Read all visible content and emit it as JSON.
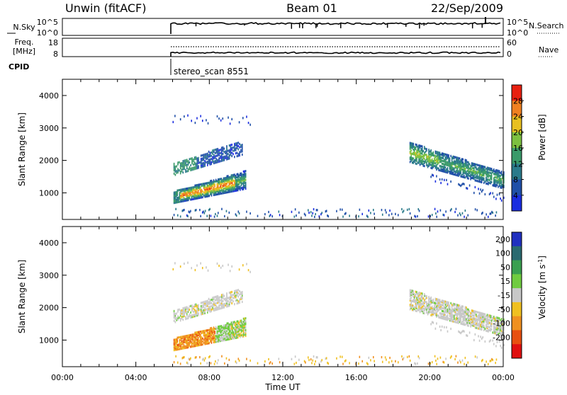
{
  "header": {
    "station": "Unwin (fitACF)",
    "beam": "Beam 01",
    "date": "22/Sep/2009"
  },
  "nsky_panel": {
    "left_label": "N.Sky",
    "left_ticks": [
      "10^5",
      "10^0"
    ],
    "right_ticks": [
      "10^5",
      "10^0"
    ],
    "right_label": "N.Search"
  },
  "freq_panel": {
    "left_label_1": "Freq.",
    "left_label_2": "[MHz]",
    "left_ticks": [
      "18",
      "8"
    ],
    "right_ticks": [
      "60",
      "0"
    ],
    "right_label": "Nave"
  },
  "cpid": {
    "label": "CPID",
    "program": "stereo_scan 8551"
  },
  "chart_data": [
    {
      "type": "heatmap",
      "name": "power",
      "ylabel": "Slant Range [km]",
      "xlabel": "Time UT",
      "x_ticks": [
        "00:00",
        "04:00",
        "08:00",
        "12:00",
        "16:00",
        "20:00",
        "00:00"
      ],
      "xlim_hours": [
        0,
        24
      ],
      "ylim": [
        180,
        4500
      ],
      "y_ticks": [
        1000,
        2000,
        3000,
        4000
      ],
      "colorbar": {
        "label": "Power [dB]",
        "range": [
          0,
          32
        ],
        "ticks": [
          4,
          8,
          12,
          16,
          20,
          24,
          28
        ],
        "colors": [
          "#1a2de0",
          "#1f4fa8",
          "#2a7a8a",
          "#3a9a6a",
          "#7cc040",
          "#e8c020",
          "#f08020",
          "#e82010"
        ]
      },
      "regions": [
        {
          "t_start": 6.05,
          "t_end": 10.0,
          "r_start": 650,
          "r_end": 1650,
          "peak_db": 30,
          "desc": "main band rising"
        },
        {
          "t_start": 6.05,
          "t_end": 9.8,
          "r_start": 1500,
          "r_end": 2650,
          "peak_db": 16,
          "desc": "upper band"
        },
        {
          "t_start": 6.0,
          "t_end": 10.2,
          "r_start": 3050,
          "r_end": 3350,
          "peak_db": 4,
          "desc": "sparse top"
        },
        {
          "t_start": 18.9,
          "t_end": 24.0,
          "r_start": 1000,
          "r_end": 2800,
          "peak_db": 22,
          "desc": "evening band"
        }
      ]
    },
    {
      "type": "heatmap",
      "name": "velocity",
      "ylabel": "Slant Range [km]",
      "xlabel": "Time UT",
      "x_ticks": [
        "00:00",
        "04:00",
        "08:00",
        "12:00",
        "16:00",
        "20:00",
        "00:00"
      ],
      "xlim_hours": [
        0,
        24
      ],
      "ylim": [
        180,
        4500
      ],
      "y_ticks": [
        1000,
        2000,
        3000,
        4000
      ],
      "colorbar": {
        "label": "Velocity [m s^-1]",
        "ticks": [
          "200",
          "100",
          "50",
          "15",
          "-15",
          "-50",
          "-100",
          "-200"
        ],
        "colors": [
          "#2030c0",
          "#2a6a70",
          "#3aa050",
          "#70cc40",
          "#c8c8c8",
          "#f0c020",
          "#f09020",
          "#e85010",
          "#e01010"
        ]
      }
    }
  ]
}
